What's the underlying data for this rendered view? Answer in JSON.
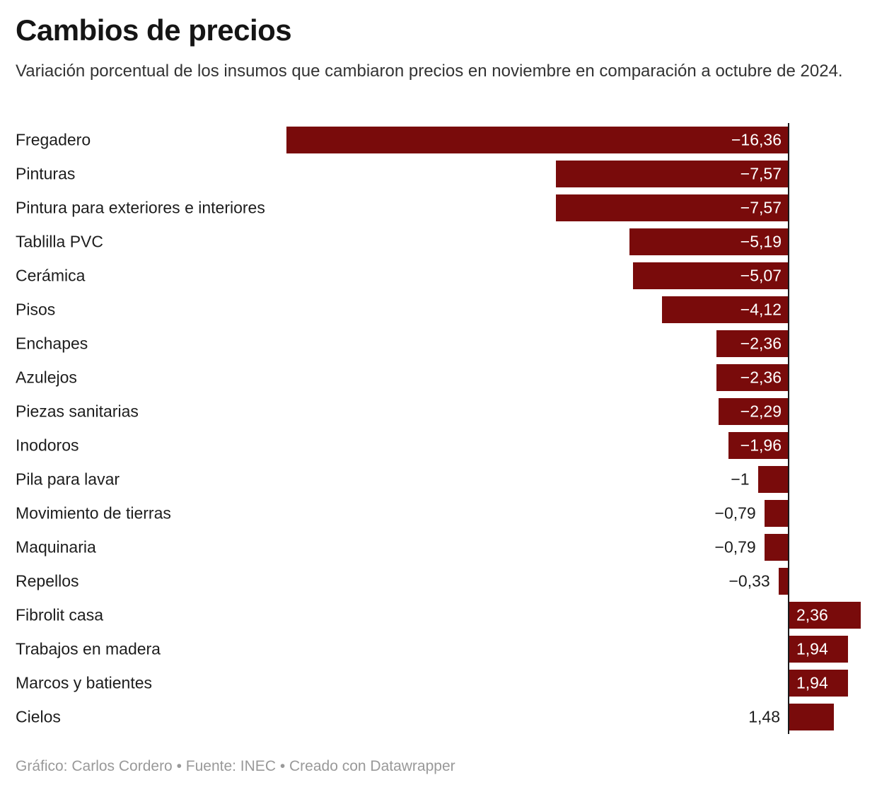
{
  "header": {
    "title": "Cambios de precios",
    "subtitle": "Variación porcentual de los insumos que cambiaron precios en noviembre en comparación a octubre de 2024."
  },
  "footer": {
    "text": "Gráfico: Carlos Cordero • Fuente: INEC • Creado con Datawrapper"
  },
  "colors": {
    "bar": "#790b0b",
    "axis": "#19191b",
    "label": "#1d1d1d",
    "value_inside": "#ffffff",
    "footer": "#999999"
  },
  "chart_data": {
    "type": "bar",
    "orientation": "horizontal",
    "title": "Cambios de precios",
    "xlabel": "Variación porcentual",
    "ylabel": "",
    "xlim": [
      -16.36,
      2.36
    ],
    "grid": false,
    "legend": "none",
    "categories": [
      "Fregadero",
      "Pinturas",
      "Pintura para exteriores e interiores",
      "Tablilla PVC",
      "Cerámica",
      "Pisos",
      "Enchapes",
      "Azulejos",
      "Piezas sanitarias",
      "Inodoros",
      "Pila para lavar",
      "Movimiento de tierras",
      "Maquinaria",
      "Repellos",
      "Fibrolit casa",
      "Trabajos en madera",
      "Marcos y batientes",
      "Cielos"
    ],
    "values": [
      -16.36,
      -7.57,
      -7.57,
      -5.19,
      -5.07,
      -4.12,
      -2.36,
      -2.36,
      -2.29,
      -1.96,
      -1,
      -0.79,
      -0.79,
      -0.33,
      2.36,
      1.94,
      1.94,
      1.48
    ],
    "value_labels": [
      "−16,36",
      "−7,57",
      "−7,57",
      "−5,19",
      "−5,07",
      "−4,12",
      "−2,36",
      "−2,36",
      "−2,29",
      "−1,96",
      "−1",
      "−0,79",
      "−0,79",
      "−0,33",
      "2,36",
      "1,94",
      "1,94",
      "1,48"
    ]
  }
}
